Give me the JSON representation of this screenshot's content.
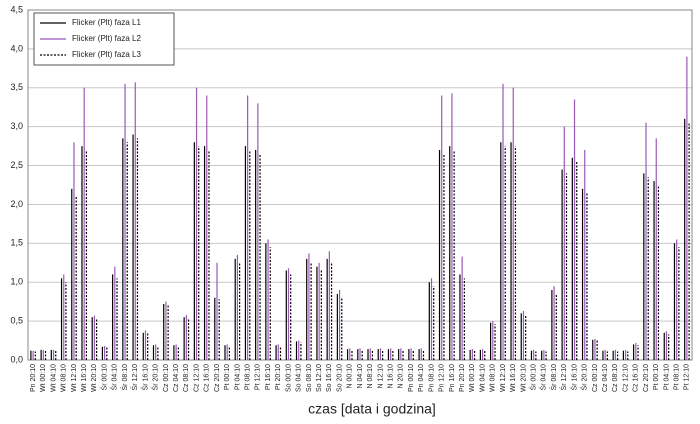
{
  "chart_data": {
    "type": "bar",
    "x_label": "czas [data i godzina]",
    "categories": [
      "Pn 20:10",
      "Wt 00:10",
      "Wt 04:10",
      "Wt 08:10",
      "Wt 12:10",
      "Wt 16:10",
      "Wt 20:10",
      "Śr 00:10",
      "Śr 04:10",
      "Śr 08:10",
      "Śr 12:10",
      "Śr 16:10",
      "Śr 20:10",
      "Cz 00:10",
      "Cz 04:10",
      "Cz 08:10",
      "Cz 12:10",
      "Cz 16:10",
      "Cz 20:10",
      "Pt 00:10",
      "Pt 04:10",
      "Pt 08:10",
      "Pt 12:10",
      "Pt 16:10",
      "Pt 20:10",
      "So 00:10",
      "So 04:10",
      "So 08:10",
      "So 12:10",
      "So 16:10",
      "So 20:10",
      "N 00:10",
      "N 04:10",
      "N 08:10",
      "N 12:10",
      "N 16:10",
      "N 20:10",
      "Pn 00:10",
      "Pn 04:10",
      "Pn 08:10",
      "Pn 12:10",
      "Pn 16:10",
      "Pn 20:10",
      "Wt 00:10",
      "Wt 04:10",
      "Wt 08:10",
      "Wt 12:10",
      "Wt 16:10",
      "Wt 20:10",
      "Śr 00:10",
      "Śr 04:10",
      "Śr 08:10",
      "Śr 12:10",
      "Śr 16:10",
      "Śr 20:10",
      "Cz 00:10",
      "Cz 04:10",
      "Cz 08:10",
      "Cz 12:10",
      "Cz 16:10",
      "Cz 20:10",
      "Pt 00:10",
      "Pt 04:10",
      "Pt 08:10",
      "Pt 12:10"
    ],
    "series": [
      {
        "name": "Flicker (Plt) faza L1",
        "color": "#000000",
        "linestyle": "solid",
        "values": [
          0.12,
          0.13,
          0.13,
          1.05,
          2.2,
          2.75,
          0.55,
          0.17,
          1.1,
          2.85,
          2.9,
          0.35,
          0.19,
          0.72,
          0.19,
          0.55,
          2.8,
          2.75,
          0.8,
          0.19,
          1.3,
          2.75,
          2.7,
          1.5,
          0.19,
          1.15,
          0.24,
          1.3,
          1.2,
          1.3,
          0.85,
          0.14,
          0.14,
          0.14,
          0.14,
          0.14,
          0.14,
          0.14,
          0.14,
          1.0,
          2.7,
          2.75,
          1.1,
          0.13,
          0.13,
          0.48,
          2.8,
          2.8,
          0.6,
          0.12,
          0.12,
          0.9,
          2.45,
          2.6,
          2.2,
          0.26,
          0.12,
          0.12,
          0.12,
          0.2,
          2.4,
          2.3,
          0.35,
          1.5,
          3.1
        ]
      },
      {
        "name": "Flicker (Plt) faza L2",
        "color": "#9b59b6",
        "linestyle": "solid",
        "values": [
          0.12,
          0.13,
          0.13,
          1.1,
          2.8,
          3.5,
          0.57,
          0.18,
          1.2,
          3.55,
          3.57,
          0.38,
          0.2,
          0.75,
          0.2,
          0.58,
          3.5,
          3.4,
          1.25,
          0.2,
          1.35,
          3.4,
          3.3,
          1.55,
          0.2,
          1.18,
          0.25,
          1.37,
          1.25,
          1.4,
          0.9,
          0.15,
          0.15,
          0.15,
          0.15,
          0.15,
          0.15,
          0.15,
          0.15,
          1.05,
          3.4,
          3.43,
          1.33,
          0.14,
          0.14,
          0.5,
          3.55,
          3.5,
          0.63,
          0.13,
          0.13,
          0.95,
          3.0,
          3.35,
          2.7,
          0.27,
          0.13,
          0.13,
          0.13,
          0.22,
          3.05,
          2.85,
          0.37,
          1.55,
          3.9
        ]
      },
      {
        "name": "Flicker (Plt) faza L3",
        "color": "#000000",
        "linestyle": "dashed",
        "values": [
          0.11,
          0.12,
          0.12,
          1.0,
          2.1,
          2.7,
          0.53,
          0.16,
          1.05,
          2.8,
          2.85,
          0.34,
          0.18,
          0.7,
          0.18,
          0.53,
          2.75,
          2.7,
          0.78,
          0.18,
          1.25,
          2.7,
          2.65,
          1.45,
          0.18,
          1.1,
          0.23,
          1.25,
          1.15,
          1.25,
          0.8,
          0.13,
          0.13,
          0.13,
          0.13,
          0.13,
          0.13,
          0.13,
          0.13,
          0.95,
          2.65,
          2.7,
          1.05,
          0.12,
          0.12,
          0.46,
          2.75,
          2.75,
          0.58,
          0.11,
          0.11,
          0.85,
          2.4,
          2.55,
          2.15,
          0.25,
          0.11,
          0.11,
          0.11,
          0.19,
          2.35,
          2.25,
          0.33,
          1.45,
          3.05
        ]
      }
    ],
    "ylim": [
      0,
      4.5
    ],
    "yticks": [
      {
        "value": 0,
        "label": "0,0"
      },
      {
        "value": 0.5,
        "label": "0,5"
      },
      {
        "value": 1,
        "label": "1,0"
      },
      {
        "value": 1.5,
        "label": "1,5"
      },
      {
        "value": 2,
        "label": "2,0"
      },
      {
        "value": 2.5,
        "label": "2,5"
      },
      {
        "value": 3,
        "label": "3,0"
      },
      {
        "value": 3.5,
        "label": "3,5"
      },
      {
        "value": 4,
        "label": "4,0"
      },
      {
        "value": 4.5,
        "label": "4,5"
      }
    ],
    "grid": true,
    "legend_position": "upper left"
  }
}
